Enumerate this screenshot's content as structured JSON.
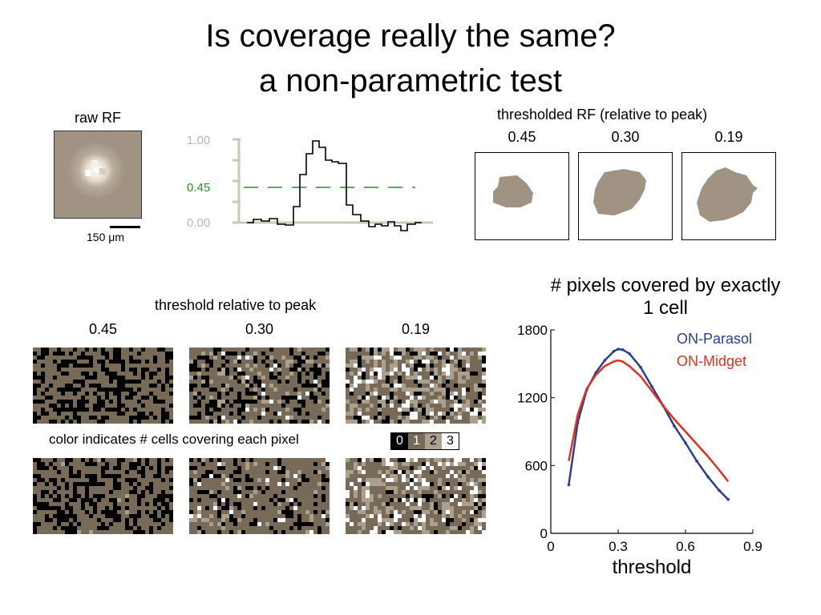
{
  "slide": {
    "title_line1": "Is coverage really the same?",
    "title_line2": "a non-parametric test"
  },
  "raw_rf": {
    "label": "raw RF",
    "scale_label": "150 μm"
  },
  "profile": {
    "ticks": [
      "1.00",
      "0.45",
      "0.00"
    ],
    "threshold_color": "#2e8b2e"
  },
  "thresholded": {
    "title": "thresholded RF (relative to peak)",
    "levels": [
      "0.45",
      "0.30",
      "0.19"
    ]
  },
  "maps": {
    "title": "threshold relative to peak",
    "levels": [
      "0.45",
      "0.30",
      "0.19"
    ],
    "legend_caption": "color indicates # cells covering each pixel",
    "legend_values": [
      "0",
      "1",
      "2",
      "3"
    ],
    "legend_colors": [
      "#000000",
      "#786a58",
      "#ab9f8e",
      "#ffffff"
    ]
  },
  "chart_data": {
    "type": "line",
    "title": "# pixels covered by exactly 1 cell",
    "xlabel": "threshold",
    "ylabel": "",
    "xlim": [
      0,
      0.9
    ],
    "ylim": [
      0,
      1800
    ],
    "xticks": [
      "0",
      "0.3",
      "0.6",
      "0.9"
    ],
    "yticks": [
      "0",
      "600",
      "1200",
      "1800"
    ],
    "legend_position": "top-right",
    "series": [
      {
        "name": "ON-Parasol",
        "color": "#2a3f8f",
        "x": [
          0.08,
          0.12,
          0.16,
          0.2,
          0.24,
          0.28,
          0.3,
          0.32,
          0.35,
          0.4,
          0.45,
          0.5,
          0.55,
          0.6,
          0.65,
          0.7,
          0.75,
          0.79
        ],
        "y": [
          430,
          980,
          1270,
          1420,
          1530,
          1610,
          1630,
          1625,
          1590,
          1470,
          1300,
          1130,
          950,
          800,
          640,
          500,
          380,
          300
        ]
      },
      {
        "name": "ON-Midget",
        "color": "#e03020",
        "x": [
          0.08,
          0.12,
          0.16,
          0.2,
          0.24,
          0.28,
          0.3,
          0.32,
          0.35,
          0.4,
          0.45,
          0.5,
          0.55,
          0.6,
          0.65,
          0.7,
          0.75,
          0.79
        ],
        "y": [
          640,
          1050,
          1280,
          1400,
          1480,
          1520,
          1530,
          1520,
          1480,
          1390,
          1260,
          1130,
          1010,
          900,
          790,
          680,
          560,
          460
        ]
      }
    ]
  }
}
